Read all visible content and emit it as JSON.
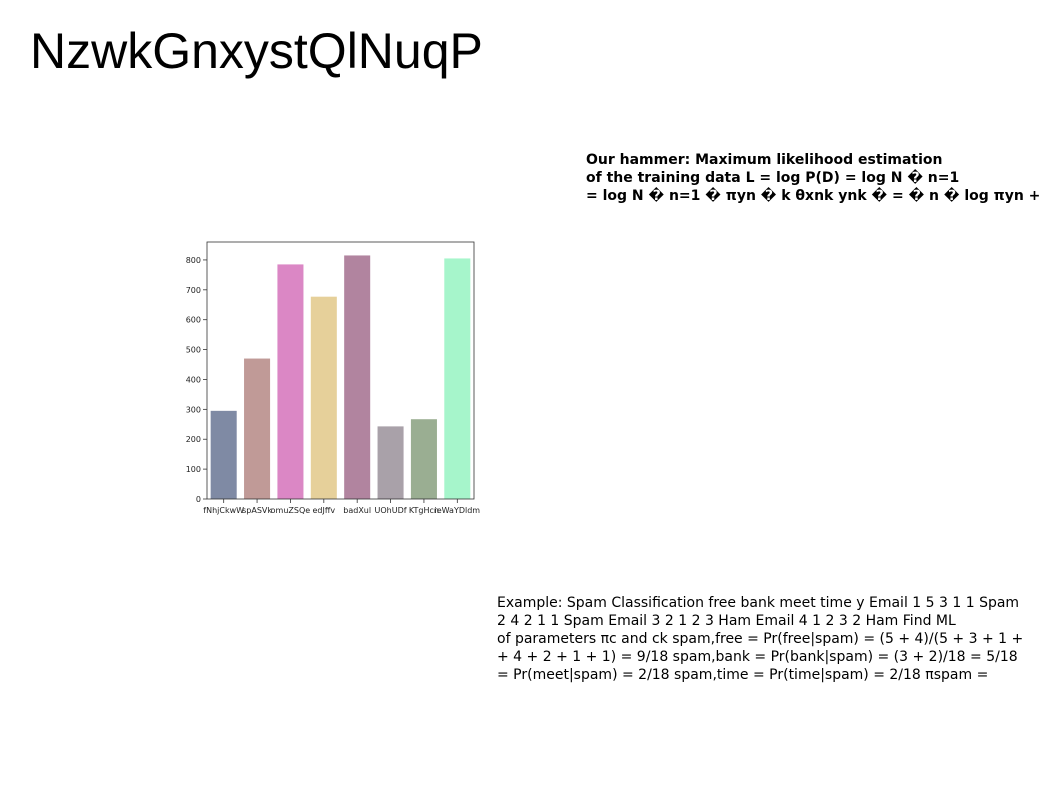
{
  "page": {
    "title": "NzwkGnxystQlNuqP"
  },
  "text_blocks": {
    "hammer_lines": [
      "Our hammer: Maximum likelihood estimation",
      "of the training data L = log P(D) = log N � n=1",
      "= log N � n=1 � πyn � k θxnk ynk � = � n � log πyn +"
    ],
    "example_lines": [
      "Example: Spam Classification free bank meet time y Email 1 5 3 1 1 Spam",
      "2 4 2 1 1 Spam Email 3 2 1 2 3 Ham Email 4 1 2 3 2 Ham Find ML",
      "of parameters πc and ck spam,free = Pr(free|spam) = (5 + 4)/(5 + 3 + 1 +",
      "+ 4 + 2 + 1 + 1) = 9/18 spam,bank = Pr(bank|spam) = (3 + 2)/18 = 5/18",
      "= Pr(meet|spam) = 2/18 spam,time = Pr(time|spam) = 2/18 πspam ="
    ]
  },
  "chart_data": {
    "type": "bar",
    "title": "",
    "xlabel": "",
    "ylabel": "",
    "categories": [
      "fNhjCkwW",
      "spASVk",
      "omuZSQe",
      "edJffv",
      "badXul",
      "UOhUDf",
      "KTgHcn",
      "ieWaYDldm"
    ],
    "values": [
      295,
      470,
      785,
      677,
      815,
      243,
      267,
      805
    ],
    "colors": [
      "#7f8aa4",
      "#c09a97",
      "#db87c5",
      "#e6d09a",
      "#b1849f",
      "#a9a1a9",
      "#9aae92",
      "#a6f5cb"
    ],
    "ylim": [
      0,
      860
    ],
    "yticks": [
      0,
      100,
      200,
      300,
      400,
      500,
      600,
      700,
      800
    ],
    "grid": false,
    "legend": "none"
  }
}
